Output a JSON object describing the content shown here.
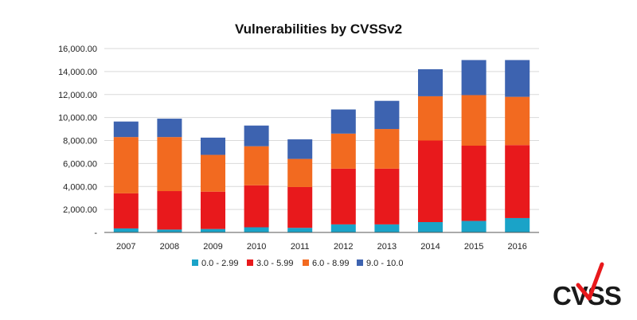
{
  "chart_data": {
    "type": "bar",
    "stacked": true,
    "title": "Vulnerabilities by CVSSv2",
    "xlabel": "",
    "ylabel": "",
    "ylim": [
      0,
      16000
    ],
    "y_ticks": [
      "-",
      "2,000.00",
      "4,000.00",
      "6,000.00",
      "8,000.00",
      "10,000.00",
      "12,000.00",
      "14,000.00",
      "16,000.00"
    ],
    "categories": [
      "2007",
      "2008",
      "2009",
      "2010",
      "2011",
      "2012",
      "2013",
      "2014",
      "2015",
      "2016"
    ],
    "grid": true,
    "legend_position": "bottom",
    "series": [
      {
        "name": "0.0 - 2.99",
        "color": "#1aa3c8",
        "values": [
          350,
          250,
          300,
          450,
          400,
          700,
          700,
          900,
          1000,
          1250
        ]
      },
      {
        "name": "3.0 - 5.99",
        "color": "#e8191c",
        "values": [
          3050,
          3350,
          3250,
          3650,
          3550,
          4850,
          4850,
          7100,
          6550,
          6350
        ]
      },
      {
        "name": "6.0 - 8.99",
        "color": "#f26a20",
        "values": [
          4900,
          4700,
          3200,
          3400,
          2450,
          3050,
          3450,
          3850,
          4400,
          4200
        ]
      },
      {
        "name": "9.0 - 10.0",
        "color": "#3d63b0",
        "values": [
          1350,
          1600,
          1500,
          1800,
          1700,
          2100,
          2450,
          2350,
          3050,
          3200
        ]
      }
    ]
  },
  "logo": {
    "text": "CVSS",
    "check_color": "#e8191c"
  }
}
